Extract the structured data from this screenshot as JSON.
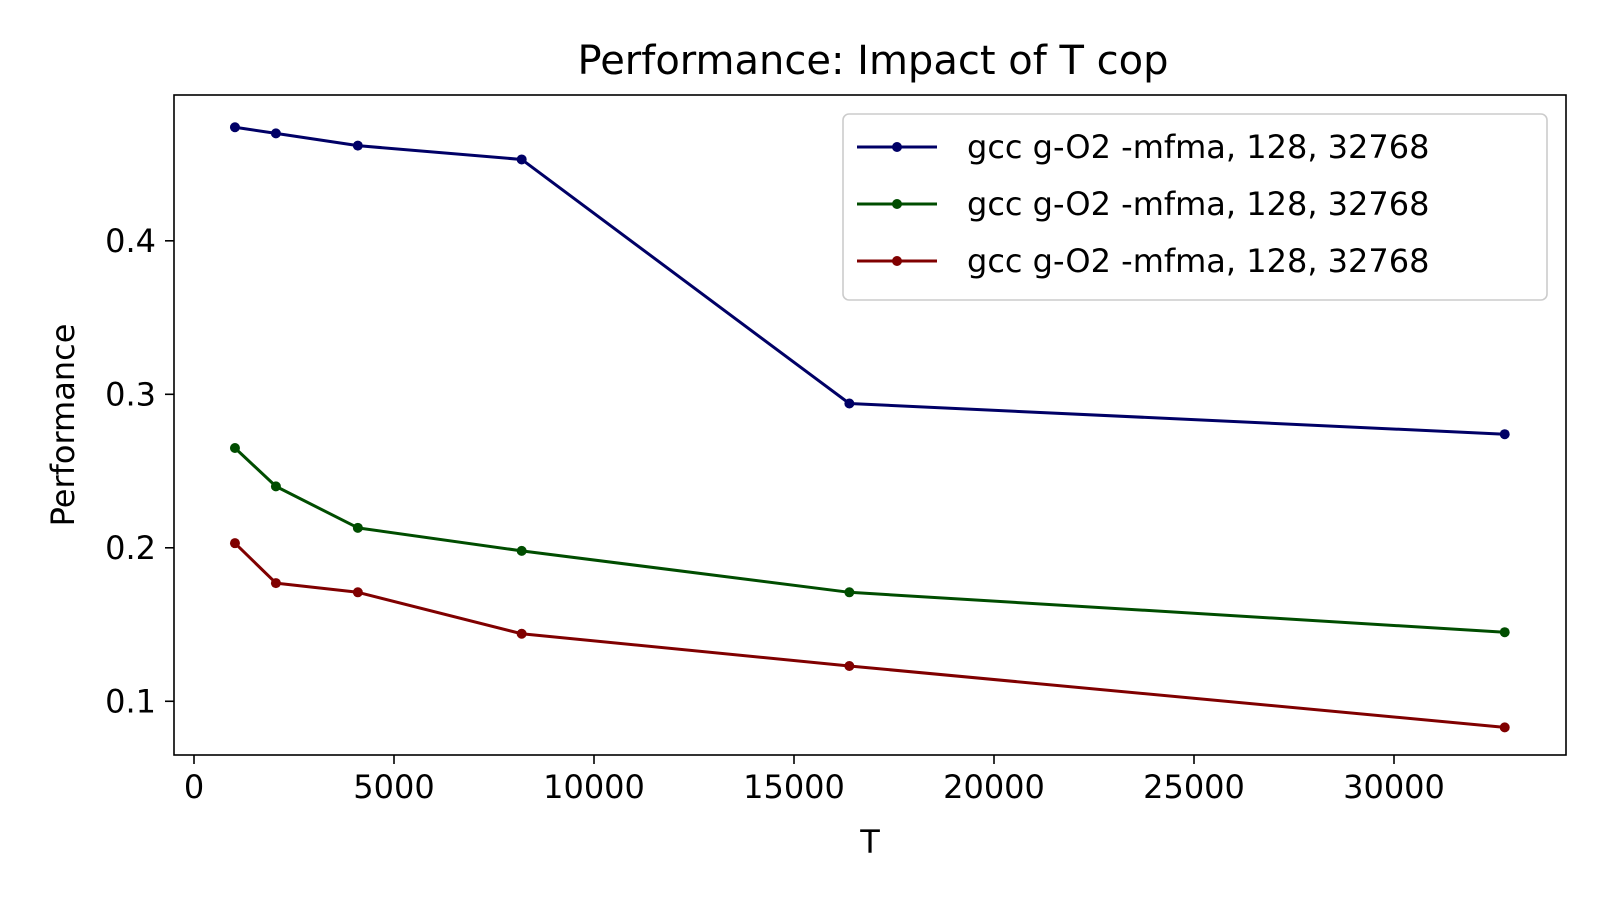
{
  "chart_data": {
    "type": "line",
    "title": "Performance: Impact of T cop",
    "xlabel": "T",
    "ylabel": "Performance",
    "xlim": [
      -500,
      34300
    ],
    "ylim": [
      0.065,
      0.495
    ],
    "xticks": [
      0,
      5000,
      10000,
      15000,
      20000,
      25000,
      30000
    ],
    "xtick_labels": [
      "0",
      "5000",
      "10000",
      "15000",
      "20000",
      "25000",
      "30000"
    ],
    "yticks": [
      0.1,
      0.2,
      0.3,
      0.4
    ],
    "ytick_labels": [
      "0.1",
      "0.2",
      "0.3",
      "0.4"
    ],
    "grid": false,
    "legend_position": "top-right",
    "x": [
      1024,
      2048,
      4096,
      8192,
      16384,
      32768
    ],
    "series": [
      {
        "name": "gcc g-O2 -mfma, 128, 32768",
        "color": "#000066",
        "values": [
          0.474,
          0.47,
          0.462,
          0.453,
          0.294,
          0.274
        ]
      },
      {
        "name": "gcc g-O2 -mfma, 128, 32768",
        "color": "#004d00",
        "values": [
          0.265,
          0.24,
          0.213,
          0.198,
          0.171,
          0.145
        ]
      },
      {
        "name": "gcc g-O2 -mfma, 128, 32768",
        "color": "#800000",
        "values": [
          0.203,
          0.177,
          0.171,
          0.144,
          0.123,
          0.083
        ]
      }
    ]
  }
}
